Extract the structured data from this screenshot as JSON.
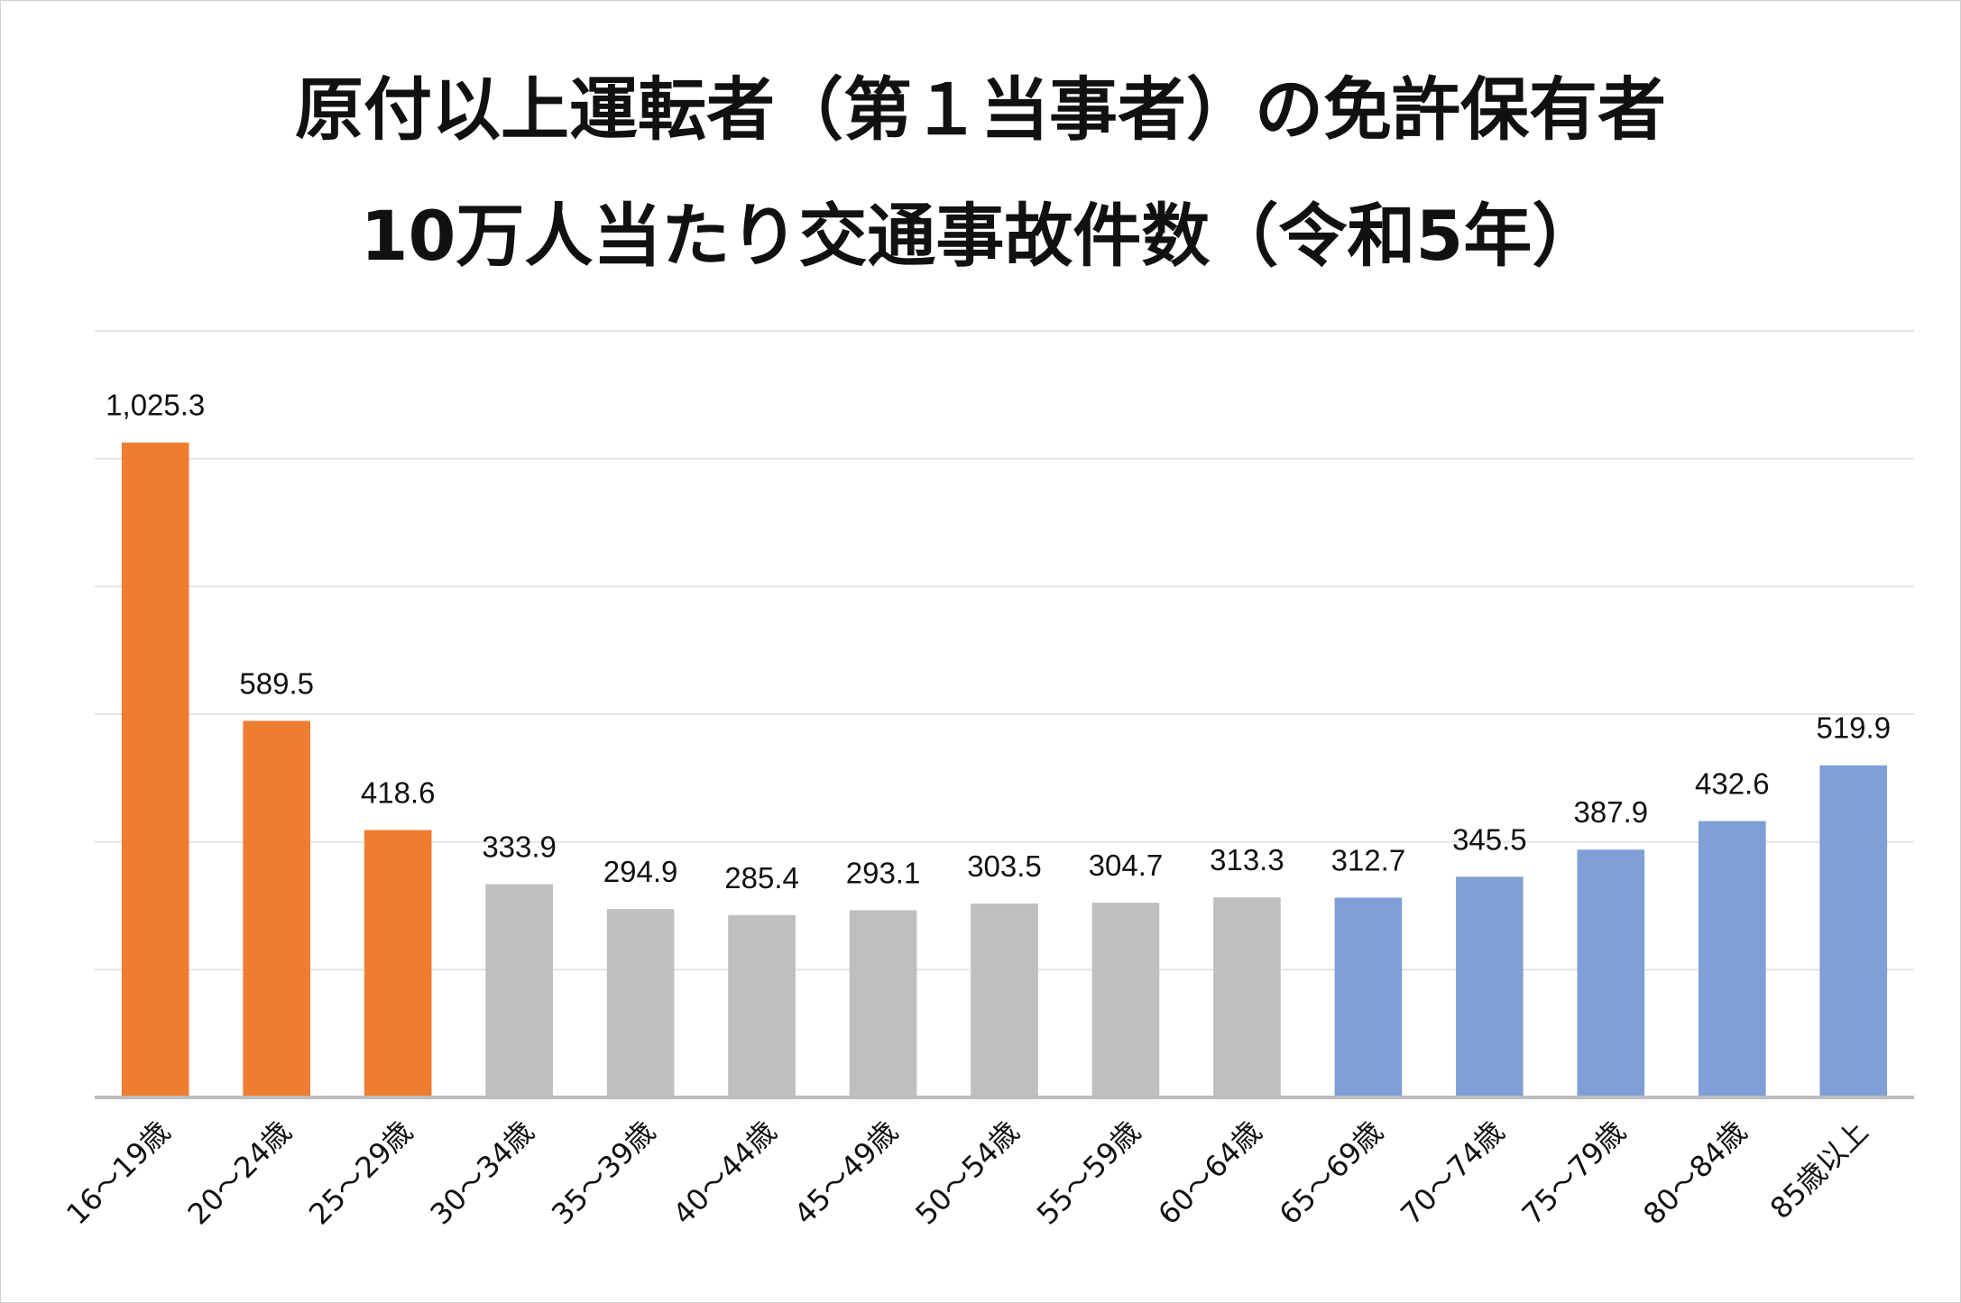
{
  "chart_data": {
    "type": "bar",
    "title_line1": "原付以上運転者（第１当事者）の免許保有者",
    "title_line2": "10万人当たり交通事故件数（令和5年）",
    "categories": [
      "16～19歳",
      "20～24歳",
      "25～29歳",
      "30～34歳",
      "35～39歳",
      "40～44歳",
      "45～49歳",
      "50～54歳",
      "55～59歳",
      "60～64歳",
      "65～69歳",
      "70～74歳",
      "75～79歳",
      "80～84歳",
      "85歳以上"
    ],
    "values": [
      1025.3,
      589.5,
      418.6,
      333.9,
      294.9,
      285.4,
      293.1,
      303.5,
      304.7,
      313.3,
      312.7,
      345.5,
      387.9,
      432.6,
      519.9
    ],
    "value_labels": [
      "1,025.3",
      "589.5",
      "418.6",
      "333.9",
      "294.9",
      "285.4",
      "293.1",
      "303.5",
      "304.7",
      "313.3",
      "312.7",
      "345.5",
      "387.9",
      "432.6",
      "519.9"
    ],
    "colors": [
      "#ED7D31",
      "#ED7D31",
      "#ED7D31",
      "#BFBFBF",
      "#BFBFBF",
      "#BFBFBF",
      "#BFBFBF",
      "#BFBFBF",
      "#BFBFBF",
      "#BFBFBF",
      "#7F9FD6",
      "#7F9FD6",
      "#7F9FD6",
      "#7F9FD6",
      "#7F9FD6"
    ],
    "ylim": [
      0,
      1200
    ],
    "grid": true,
    "legend": "none"
  }
}
